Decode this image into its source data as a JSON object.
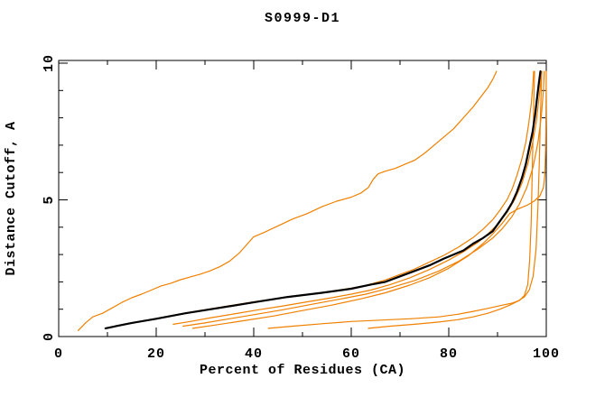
{
  "title": "S0999-D1",
  "axes": {
    "x": {
      "label": "Percent of Residues (CA)",
      "min": 0,
      "max": 100,
      "major_ticks": [
        0,
        20,
        40,
        60,
        80,
        100
      ],
      "major_tick_labels": [
        "0",
        "20",
        "40",
        "60",
        "80",
        "100"
      ],
      "minor_ticks": [
        10,
        30,
        50,
        70,
        90
      ]
    },
    "y": {
      "label": "Distance Cutoff, A",
      "min": 0,
      "max": 10,
      "major_ticks": [
        0,
        5,
        10
      ],
      "major_tick_labels": [
        "0",
        "5",
        "10"
      ],
      "minor_ticks": [
        1,
        2,
        3,
        4,
        6,
        7,
        8,
        9
      ]
    }
  },
  "colors": {
    "axis": "#000000",
    "model_curve": "#f08000",
    "reference_curve": "#000000",
    "background": "#ffffff"
  },
  "chart_data": {
    "type": "line",
    "title": "S0999-D1",
    "xlabel": "Percent of Residues (CA)",
    "ylabel": "Distance Cutoff, A",
    "xlim": [
      0,
      100
    ],
    "ylim": [
      0,
      10
    ],
    "grid": false,
    "legend": "none",
    "series": [
      {
        "name": "orange-steep-worst",
        "color": "#f08000",
        "width": 1.2,
        "points": [
          [
            4,
            0.22
          ],
          [
            5.5,
            0.5
          ],
          [
            7,
            0.72
          ],
          [
            9,
            0.85
          ],
          [
            11,
            1.05
          ],
          [
            13,
            1.25
          ],
          [
            15,
            1.42
          ],
          [
            17,
            1.55
          ],
          [
            19,
            1.7
          ],
          [
            21,
            1.85
          ],
          [
            23,
            1.95
          ],
          [
            25,
            2.08
          ],
          [
            27,
            2.18
          ],
          [
            29,
            2.28
          ],
          [
            31,
            2.4
          ],
          [
            33,
            2.55
          ],
          [
            35,
            2.75
          ],
          [
            37,
            3.05
          ],
          [
            39,
            3.45
          ],
          [
            40,
            3.65
          ],
          [
            42,
            3.8
          ],
          [
            45,
            4.05
          ],
          [
            48,
            4.3
          ],
          [
            51,
            4.5
          ],
          [
            54,
            4.75
          ],
          [
            57,
            4.95
          ],
          [
            60,
            5.1
          ],
          [
            62,
            5.25
          ],
          [
            63.5,
            5.45
          ],
          [
            64.5,
            5.75
          ],
          [
            65.5,
            5.95
          ],
          [
            67,
            6.05
          ],
          [
            69,
            6.15
          ],
          [
            71,
            6.3
          ],
          [
            73,
            6.45
          ],
          [
            75,
            6.7
          ],
          [
            77,
            7.0
          ],
          [
            79,
            7.3
          ],
          [
            81,
            7.6
          ],
          [
            83,
            8.0
          ],
          [
            85,
            8.4
          ],
          [
            86.5,
            8.75
          ],
          [
            88,
            9.1
          ],
          [
            89,
            9.4
          ],
          [
            89.8,
            9.7
          ]
        ]
      },
      {
        "name": "orange-track-black",
        "color": "#f08000",
        "width": 1.2,
        "points": [
          [
            9.6,
            0.3
          ],
          [
            20,
            0.66
          ],
          [
            26,
            0.86
          ],
          [
            33,
            1.07
          ],
          [
            40,
            1.27
          ],
          [
            47,
            1.44
          ],
          [
            54,
            1.6
          ],
          [
            60,
            1.77
          ],
          [
            63,
            1.87
          ],
          [
            67,
            2.07
          ],
          [
            70,
            2.27
          ],
          [
            73,
            2.47
          ],
          [
            76,
            2.72
          ],
          [
            79,
            2.97
          ],
          [
            82,
            3.27
          ],
          [
            85,
            3.62
          ],
          [
            87,
            3.92
          ],
          [
            89,
            4.27
          ],
          [
            90.5,
            4.62
          ],
          [
            92,
            5.02
          ],
          [
            93,
            5.4
          ],
          [
            94,
            5.9
          ],
          [
            95,
            6.5
          ],
          [
            95.8,
            7.1
          ],
          [
            96.4,
            7.8
          ],
          [
            96.9,
            8.5
          ],
          [
            97.2,
            9.1
          ],
          [
            97.4,
            9.7
          ]
        ]
      },
      {
        "name": "orange-cluster-upper",
        "color": "#f08000",
        "width": 1.2,
        "points": [
          [
            23.5,
            0.45
          ],
          [
            27,
            0.55
          ],
          [
            31,
            0.68
          ],
          [
            36,
            0.83
          ],
          [
            41,
            0.98
          ],
          [
            46,
            1.12
          ],
          [
            51,
            1.27
          ],
          [
            56,
            1.42
          ],
          [
            60,
            1.55
          ],
          [
            64,
            1.7
          ],
          [
            68,
            1.9
          ],
          [
            72,
            2.15
          ],
          [
            76,
            2.45
          ],
          [
            80,
            2.8
          ],
          [
            83,
            3.1
          ],
          [
            86,
            3.45
          ],
          [
            88,
            3.75
          ],
          [
            90,
            4.1
          ],
          [
            92,
            4.55
          ],
          [
            93.5,
            5.0
          ],
          [
            95,
            5.6
          ],
          [
            96.2,
            6.3
          ],
          [
            97.2,
            7.1
          ],
          [
            98,
            7.9
          ],
          [
            98.5,
            8.7
          ],
          [
            98.8,
            9.2
          ],
          [
            99,
            9.7
          ]
        ]
      },
      {
        "name": "orange-cluster-mid",
        "color": "#f08000",
        "width": 1.2,
        "points": [
          [
            25.5,
            0.38
          ],
          [
            30,
            0.5
          ],
          [
            35,
            0.65
          ],
          [
            40,
            0.8
          ],
          [
            46,
            0.98
          ],
          [
            52,
            1.18
          ],
          [
            58,
            1.38
          ],
          [
            63,
            1.55
          ],
          [
            68,
            1.78
          ],
          [
            73,
            2.05
          ],
          [
            78,
            2.4
          ],
          [
            82,
            2.75
          ],
          [
            86,
            3.2
          ],
          [
            89,
            3.6
          ],
          [
            91,
            3.95
          ],
          [
            93,
            4.4
          ],
          [
            94.5,
            4.85
          ],
          [
            96,
            5.45
          ],
          [
            97.3,
            6.2
          ],
          [
            98.3,
            7.1
          ],
          [
            99,
            8.1
          ],
          [
            99.4,
            9.0
          ],
          [
            99.6,
            9.7
          ]
        ]
      },
      {
        "name": "orange-staircase-right",
        "color": "#f08000",
        "width": 1.2,
        "points": [
          [
            27.5,
            0.3
          ],
          [
            32,
            0.42
          ],
          [
            38,
            0.58
          ],
          [
            44,
            0.75
          ],
          [
            50,
            0.95
          ],
          [
            56,
            1.15
          ],
          [
            62,
            1.38
          ],
          [
            67,
            1.6
          ],
          [
            72,
            1.88
          ],
          [
            76,
            2.15
          ],
          [
            80,
            2.5
          ],
          [
            84,
            2.95
          ],
          [
            87,
            3.4
          ],
          [
            89,
            3.75
          ],
          [
            91,
            4.15
          ],
          [
            92.5,
            4.5
          ],
          [
            94,
            4.65
          ],
          [
            96,
            4.8
          ],
          [
            97.5,
            4.95
          ],
          [
            98.7,
            5.15
          ],
          [
            99.4,
            5.45
          ],
          [
            99.7,
            5.9
          ],
          [
            99.85,
            6.8
          ],
          [
            99.95,
            8.2
          ],
          [
            100,
            9.7
          ]
        ]
      },
      {
        "name": "orange-flat-early",
        "color": "#f08000",
        "width": 1.2,
        "points": [
          [
            43,
            0.3
          ],
          [
            48,
            0.38
          ],
          [
            54,
            0.47
          ],
          [
            60,
            0.55
          ],
          [
            66,
            0.6
          ],
          [
            72,
            0.65
          ],
          [
            78,
            0.72
          ],
          [
            82,
            0.82
          ],
          [
            85,
            0.92
          ],
          [
            88,
            1.03
          ],
          [
            91,
            1.15
          ],
          [
            93,
            1.22
          ],
          [
            94.5,
            1.32
          ],
          [
            95.5,
            1.5
          ],
          [
            96.2,
            1.9
          ],
          [
            96.6,
            2.8
          ],
          [
            96.9,
            4.2
          ],
          [
            97.1,
            5.8
          ],
          [
            97.3,
            7.5
          ],
          [
            97.5,
            9.0
          ],
          [
            97.6,
            9.7
          ]
        ]
      },
      {
        "name": "orange-flat-late",
        "color": "#f08000",
        "width": 1.2,
        "points": [
          [
            63.5,
            0.3
          ],
          [
            68,
            0.38
          ],
          [
            73,
            0.45
          ],
          [
            78,
            0.53
          ],
          [
            82,
            0.62
          ],
          [
            85,
            0.72
          ],
          [
            88,
            0.85
          ],
          [
            90.5,
            1.0
          ],
          [
            92.5,
            1.15
          ],
          [
            94,
            1.28
          ],
          [
            95.5,
            1.45
          ],
          [
            96.5,
            1.7
          ],
          [
            97.3,
            2.2
          ],
          [
            97.9,
            3.2
          ],
          [
            98.3,
            4.8
          ],
          [
            98.6,
            6.5
          ],
          [
            98.8,
            8.0
          ],
          [
            99,
            9.3
          ],
          [
            99.1,
            9.7
          ]
        ]
      },
      {
        "name": "black-reference",
        "color": "#000000",
        "width": 2.2,
        "points": [
          [
            9.6,
            0.3
          ],
          [
            15,
            0.5
          ],
          [
            20,
            0.65
          ],
          [
            26,
            0.85
          ],
          [
            33,
            1.05
          ],
          [
            40,
            1.25
          ],
          [
            47,
            1.45
          ],
          [
            54,
            1.6
          ],
          [
            60,
            1.75
          ],
          [
            64,
            1.9
          ],
          [
            67,
            2.0
          ],
          [
            70,
            2.2
          ],
          [
            73,
            2.4
          ],
          [
            76,
            2.6
          ],
          [
            79,
            2.85
          ],
          [
            81,
            3.0
          ],
          [
            83,
            3.15
          ],
          [
            85,
            3.4
          ],
          [
            87,
            3.6
          ],
          [
            89,
            3.85
          ],
          [
            90,
            4.1
          ],
          [
            91,
            4.35
          ],
          [
            92,
            4.6
          ],
          [
            93,
            4.9
          ],
          [
            94,
            5.3
          ],
          [
            95,
            5.8
          ],
          [
            95.8,
            6.3
          ],
          [
            96.5,
            6.9
          ],
          [
            97.2,
            7.5
          ],
          [
            97.7,
            8.1
          ],
          [
            98.1,
            8.7
          ],
          [
            98.5,
            9.3
          ],
          [
            98.8,
            9.7
          ]
        ]
      }
    ]
  }
}
